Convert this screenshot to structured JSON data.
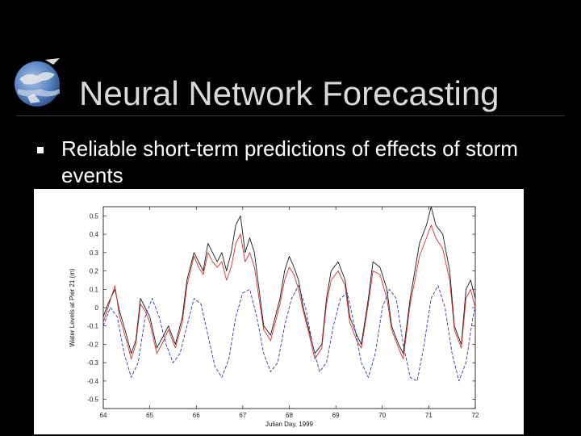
{
  "slide": {
    "title": "Neural Network Forecasting",
    "bullets": [
      "Reliable short-term predictions of effects of storm events"
    ]
  },
  "logo": {
    "icon": "earth-eagle-logo-icon"
  },
  "colors": {
    "background": "#000000",
    "title": "#d9d9d9",
    "series_black": "#1a1a1a",
    "series_red": "#d03030",
    "series_blue": "#2a3aa8"
  },
  "chart_data": {
    "type": "line",
    "xlabel": "Julian Day, 1999",
    "ylabel": "Water Levels at Pier 21 (m)",
    "xlim": [
      64,
      72
    ],
    "ylim": [
      -0.55,
      0.55
    ],
    "xticks": [
      64,
      65,
      66,
      67,
      68,
      69,
      70,
      71,
      72
    ],
    "yticks": [
      0.5,
      0.4,
      0.3,
      0.2,
      0.1,
      0,
      -0.1,
      -0.2,
      -0.3,
      -0.4,
      -0.5
    ],
    "grid": false,
    "series": [
      {
        "style": "solid",
        "color": "#1a1a1a",
        "x": [
          64.0,
          64.1,
          64.25,
          64.35,
          64.5,
          64.6,
          64.7,
          64.8,
          64.9,
          65.0,
          65.15,
          65.3,
          65.4,
          65.55,
          65.7,
          65.8,
          65.95,
          66.05,
          66.15,
          66.25,
          66.35,
          66.45,
          66.55,
          66.65,
          66.75,
          66.85,
          66.95,
          67.05,
          67.15,
          67.25,
          67.35,
          67.45,
          67.6,
          67.7,
          67.8,
          67.9,
          68.0,
          68.1,
          68.2,
          68.3,
          68.4,
          68.55,
          68.7,
          68.8,
          68.9,
          69.05,
          69.2,
          69.3,
          69.45,
          69.55,
          69.7,
          69.8,
          69.95,
          70.1,
          70.2,
          70.35,
          70.45,
          70.6,
          70.7,
          70.8,
          70.95,
          71.05,
          71.15,
          71.3,
          71.45,
          71.55,
          71.7,
          71.8,
          71.9,
          72.0
        ],
        "y": [
          -0.05,
          0.02,
          0.1,
          -0.02,
          -0.15,
          -0.25,
          -0.18,
          0.05,
          0.0,
          -0.05,
          -0.22,
          -0.15,
          -0.1,
          -0.2,
          -0.05,
          0.15,
          0.3,
          0.25,
          0.2,
          0.35,
          0.3,
          0.25,
          0.3,
          0.2,
          0.3,
          0.45,
          0.5,
          0.3,
          0.38,
          0.3,
          0.1,
          -0.1,
          -0.15,
          -0.05,
          0.05,
          0.2,
          0.28,
          0.22,
          0.15,
          0.0,
          -0.1,
          -0.25,
          -0.2,
          0.05,
          0.2,
          0.25,
          0.15,
          -0.05,
          -0.15,
          -0.2,
          0.05,
          0.25,
          0.22,
          0.1,
          -0.1,
          -0.2,
          -0.25,
          0.05,
          0.2,
          0.35,
          0.45,
          0.55,
          0.45,
          0.4,
          0.2,
          -0.1,
          -0.2,
          0.1,
          0.15,
          0.05
        ]
      },
      {
        "style": "solid",
        "color": "#d03030",
        "x": [
          64.0,
          64.1,
          64.25,
          64.35,
          64.5,
          64.6,
          64.7,
          64.8,
          64.9,
          65.0,
          65.15,
          65.3,
          65.4,
          65.55,
          65.7,
          65.8,
          65.95,
          66.05,
          66.15,
          66.25,
          66.35,
          66.45,
          66.55,
          66.65,
          66.75,
          66.85,
          66.95,
          67.05,
          67.15,
          67.25,
          67.35,
          67.45,
          67.6,
          67.7,
          67.8,
          67.9,
          68.0,
          68.1,
          68.2,
          68.3,
          68.4,
          68.55,
          68.7,
          68.8,
          68.9,
          69.05,
          69.2,
          69.3,
          69.45,
          69.55,
          69.7,
          69.8,
          69.95,
          70.1,
          70.2,
          70.35,
          70.45,
          70.6,
          70.7,
          70.8,
          70.95,
          71.05,
          71.15,
          71.3,
          71.45,
          71.55,
          71.7,
          71.8,
          71.9,
          72.0
        ],
        "y": [
          -0.08,
          0.0,
          0.12,
          -0.05,
          -0.18,
          -0.28,
          -0.2,
          0.02,
          -0.02,
          -0.08,
          -0.25,
          -0.18,
          -0.12,
          -0.22,
          -0.08,
          0.12,
          0.28,
          0.22,
          0.18,
          0.3,
          0.25,
          0.22,
          0.25,
          0.15,
          0.22,
          0.35,
          0.4,
          0.25,
          0.3,
          0.22,
          0.05,
          -0.12,
          -0.18,
          -0.08,
          0.02,
          0.15,
          0.22,
          0.18,
          0.1,
          -0.02,
          -0.12,
          -0.28,
          -0.22,
          0.02,
          0.15,
          0.2,
          0.12,
          -0.08,
          -0.18,
          -0.22,
          0.02,
          0.2,
          0.18,
          0.05,
          -0.12,
          -0.22,
          -0.28,
          0.02,
          0.15,
          0.28,
          0.38,
          0.45,
          0.38,
          0.32,
          0.15,
          -0.12,
          -0.22,
          0.05,
          0.1,
          0.0
        ]
      },
      {
        "style": "dashed",
        "color": "#2a3aa8",
        "x": [
          64.0,
          64.15,
          64.3,
          64.45,
          64.6,
          64.75,
          64.9,
          65.05,
          65.2,
          65.35,
          65.5,
          65.65,
          65.8,
          65.95,
          66.1,
          66.25,
          66.4,
          66.55,
          66.7,
          66.85,
          67.0,
          67.15,
          67.3,
          67.45,
          67.6,
          67.75,
          67.9,
          68.05,
          68.2,
          68.35,
          68.5,
          68.65,
          68.8,
          68.95,
          69.1,
          69.25,
          69.4,
          69.55,
          69.7,
          69.85,
          70.0,
          70.15,
          70.3,
          70.45,
          70.6,
          70.75,
          70.9,
          71.05,
          71.2,
          71.35,
          71.5,
          71.65,
          71.8,
          71.95,
          72.0
        ],
        "y": [
          -0.1,
          0.0,
          -0.05,
          -0.25,
          -0.38,
          -0.3,
          -0.05,
          0.05,
          -0.05,
          -0.2,
          -0.3,
          -0.25,
          -0.1,
          0.05,
          0.02,
          -0.15,
          -0.32,
          -0.38,
          -0.28,
          -0.05,
          0.08,
          0.1,
          -0.05,
          -0.25,
          -0.35,
          -0.3,
          -0.1,
          0.05,
          0.12,
          0.0,
          -0.2,
          -0.35,
          -0.3,
          -0.1,
          0.05,
          0.08,
          -0.1,
          -0.3,
          -0.38,
          -0.25,
          0.0,
          0.1,
          0.05,
          -0.2,
          -0.38,
          -0.4,
          -0.2,
          0.05,
          0.12,
          0.0,
          -0.25,
          -0.4,
          -0.3,
          -0.05,
          0.0
        ]
      }
    ]
  }
}
